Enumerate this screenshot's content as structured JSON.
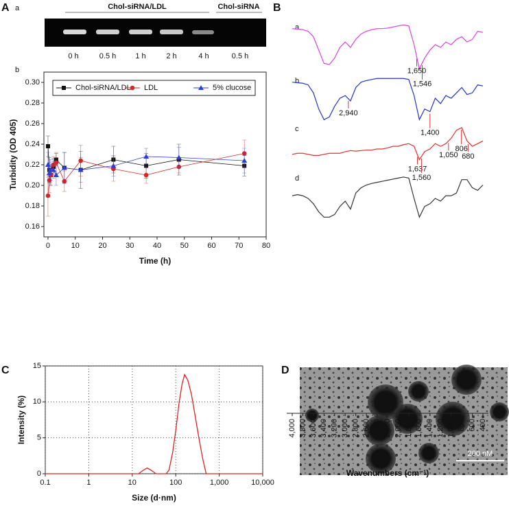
{
  "panel_labels": {
    "A": "A",
    "a": "a",
    "b": "b",
    "B": "B",
    "C": "C",
    "D": "D"
  },
  "gel": {
    "group_labels": [
      "Chol-siRNA/LDL",
      "Chol-siRNA"
    ],
    "lanes": [
      "0 h",
      "0.5 h",
      "1 h",
      "2 h",
      "4 h",
      "0.5 h"
    ]
  },
  "tem": {
    "scale_label": "200 nM"
  },
  "chart_data": [
    {
      "type": "line",
      "xlabel": "Time (h)",
      "ylabel": "Turbidity (OD 405)",
      "x": [
        0,
        0.5,
        1,
        2,
        3,
        6,
        12,
        24,
        36,
        48,
        72
      ],
      "xlim": [
        -1.5,
        80
      ],
      "xticks": [
        0,
        10,
        20,
        30,
        40,
        50,
        60,
        70,
        80
      ],
      "ylim": [
        0.15,
        0.31
      ],
      "yticks": [
        0.16,
        0.18,
        {
          "value": 0.2,
          "label": "0.20"
        },
        0.22,
        0.24,
        0.26,
        0.28,
        {
          "value": 0.3,
          "label": "0.30"
        }
      ],
      "legend": "top",
      "series": [
        {
          "name": "Chol-siRNA/LDL",
          "color": "#111111",
          "marker": "square",
          "values": [
            0.238,
            0.215,
            0.21,
            0.218,
            0.225,
            0.217,
            0.215,
            0.225,
            0.219,
            0.225,
            0.219
          ],
          "errors": [
            0.01,
            0.012,
            0.01,
            0.008,
            0.006,
            0.015,
            0.018,
            0.013,
            0.012,
            0.015,
            0.01
          ]
        },
        {
          "name": "LDL",
          "color": "#d62728",
          "marker": "circle",
          "values": [
            0.19,
            0.205,
            0.21,
            0.22,
            0.222,
            0.204,
            0.224,
            0.216,
            0.21,
            0.218,
            0.231
          ],
          "errors": [
            0.02,
            0.012,
            0.01,
            0.008,
            0.01,
            0.01,
            0.015,
            0.012,
            0.008,
            0.006,
            0.013
          ]
        },
        {
          "name": "5% clucose",
          "color": "#2b3fd6",
          "marker": "triangle",
          "values": [
            0.22,
            0.212,
            0.215,
            0.215,
            0.21,
            0.217,
            0.215,
            0.219,
            0.228,
            0.227,
            0.224
          ],
          "errors": [
            0.012,
            0.01,
            0.01,
            0.008,
            0.01,
            0.015,
            0.012,
            0.01,
            0.008,
            0.01,
            0.012
          ]
        }
      ]
    },
    {
      "type": "spectra",
      "xlabel": "Wavenumbers (cm⁻¹)",
      "x": [
        4000,
        3900,
        3800,
        3700,
        3600,
        3500,
        3400,
        3300,
        3200,
        3100,
        3000,
        2900,
        2800,
        2700,
        2600,
        2500,
        2400,
        2300,
        2200,
        2100,
        2000,
        1900,
        1800,
        1700,
        1600,
        1500,
        1400,
        1300,
        1200,
        1100,
        1000,
        900,
        800,
        700,
        600,
        500,
        400
      ],
      "xlim": [
        4000,
        400
      ],
      "xticks": [
        {
          "value": 4000,
          "label": "4,000"
        },
        {
          "value": 3800,
          "label": "3,800"
        },
        {
          "value": 3600,
          "label": "3,600"
        },
        {
          "value": 3400,
          "label": "3,400"
        },
        {
          "value": 3200,
          "label": "3,200"
        },
        {
          "value": 3000,
          "label": "3,000"
        },
        {
          "value": 2800,
          "label": "2,800"
        },
        {
          "value": 2600,
          "label": "2,600"
        },
        {
          "value": 2400,
          "label": "2,400"
        },
        {
          "value": 2200,
          "label": "2,200"
        },
        {
          "value": 2000,
          "label": "2,000"
        },
        {
          "value": 1800,
          "label": "1,800"
        },
        {
          "value": 1600,
          "label": "1,600"
        },
        {
          "value": 1400,
          "label": "1,400"
        },
        {
          "value": 1200,
          "label": "1,200"
        },
        {
          "value": 1000,
          "label": "1,000"
        },
        800,
        600,
        400
      ],
      "series": [
        {
          "name": "a",
          "color": "#e040e0",
          "values": [
            85,
            84,
            83,
            80,
            70,
            45,
            20,
            18,
            30,
            50,
            60,
            50,
            65,
            75,
            80,
            83,
            85,
            85,
            86,
            88,
            90,
            92,
            90,
            55,
            10,
            30,
            45,
            55,
            50,
            60,
            55,
            65,
            70,
            60,
            65,
            80,
            78
          ],
          "annotations": [
            {
              "value": 1650,
              "label": "1,650"
            },
            {
              "value": 1546,
              "label": "1,546"
            }
          ]
        },
        {
          "name": "b",
          "color": "#2233cc",
          "values": [
            85,
            84,
            83,
            80,
            65,
            35,
            15,
            20,
            40,
            55,
            60,
            50,
            75,
            85,
            88,
            90,
            92,
            92,
            92,
            92,
            92,
            92,
            90,
            60,
            15,
            35,
            30,
            55,
            45,
            60,
            55,
            65,
            75,
            62,
            65,
            80,
            78
          ],
          "annotations": [
            {
              "value": 2940,
              "label": "2,940"
            },
            {
              "value": 1400,
              "label": "1,400"
            }
          ]
        },
        {
          "name": "c",
          "color": "#e03030",
          "values": [
            40,
            42,
            42,
            40,
            38,
            38,
            40,
            42,
            42,
            42,
            45,
            47,
            46,
            47,
            48,
            48,
            50,
            50,
            52,
            55,
            55,
            58,
            60,
            55,
            30,
            45,
            50,
            60,
            55,
            60,
            70,
            85,
            90,
            65,
            55,
            60,
            65
          ],
          "annotations": [
            {
              "value": 1637,
              "label": "1,637"
            },
            {
              "value": 1560,
              "label": "1,560"
            },
            {
              "value": 1050,
              "label": "1,050"
            },
            {
              "value": 806,
              "label": "806"
            },
            {
              "value": 680,
              "label": "680"
            }
          ]
        },
        {
          "name": "d",
          "color": "#333333",
          "values": [
            55,
            57,
            55,
            50,
            40,
            25,
            15,
            15,
            20,
            35,
            45,
            30,
            60,
            70,
            75,
            78,
            80,
            82,
            84,
            86,
            88,
            90,
            88,
            50,
            15,
            35,
            40,
            50,
            45,
            55,
            55,
            60,
            85,
            85,
            70,
            65,
            75
          ]
        }
      ]
    },
    {
      "type": "line",
      "xlabel": "Size (d·nm)",
      "ylabel": "Intensity (%)",
      "log_x": true,
      "grid": true,
      "x": [
        0.1,
        10,
        14,
        18,
        22,
        27,
        35,
        60,
        70,
        85,
        100,
        120,
        140,
        160,
        190,
        230,
        280,
        340,
        420,
        500,
        10000
      ],
      "xlim": [
        0.1,
        10000
      ],
      "xticks": [
        0.1,
        1,
        10,
        100,
        {
          "value": 1000,
          "label": "1,000"
        },
        {
          "value": 10000,
          "label": "10,000"
        }
      ],
      "ylim": [
        0,
        15
      ],
      "yticks": [
        0,
        5,
        10,
        15
      ],
      "series": [
        {
          "color": "#e02020",
          "values": [
            0,
            0,
            0,
            0.5,
            0.8,
            0.5,
            0,
            0,
            0.5,
            3,
            6,
            10,
            12.5,
            13.8,
            13,
            11,
            8,
            5,
            2,
            0,
            0
          ]
        }
      ]
    }
  ]
}
